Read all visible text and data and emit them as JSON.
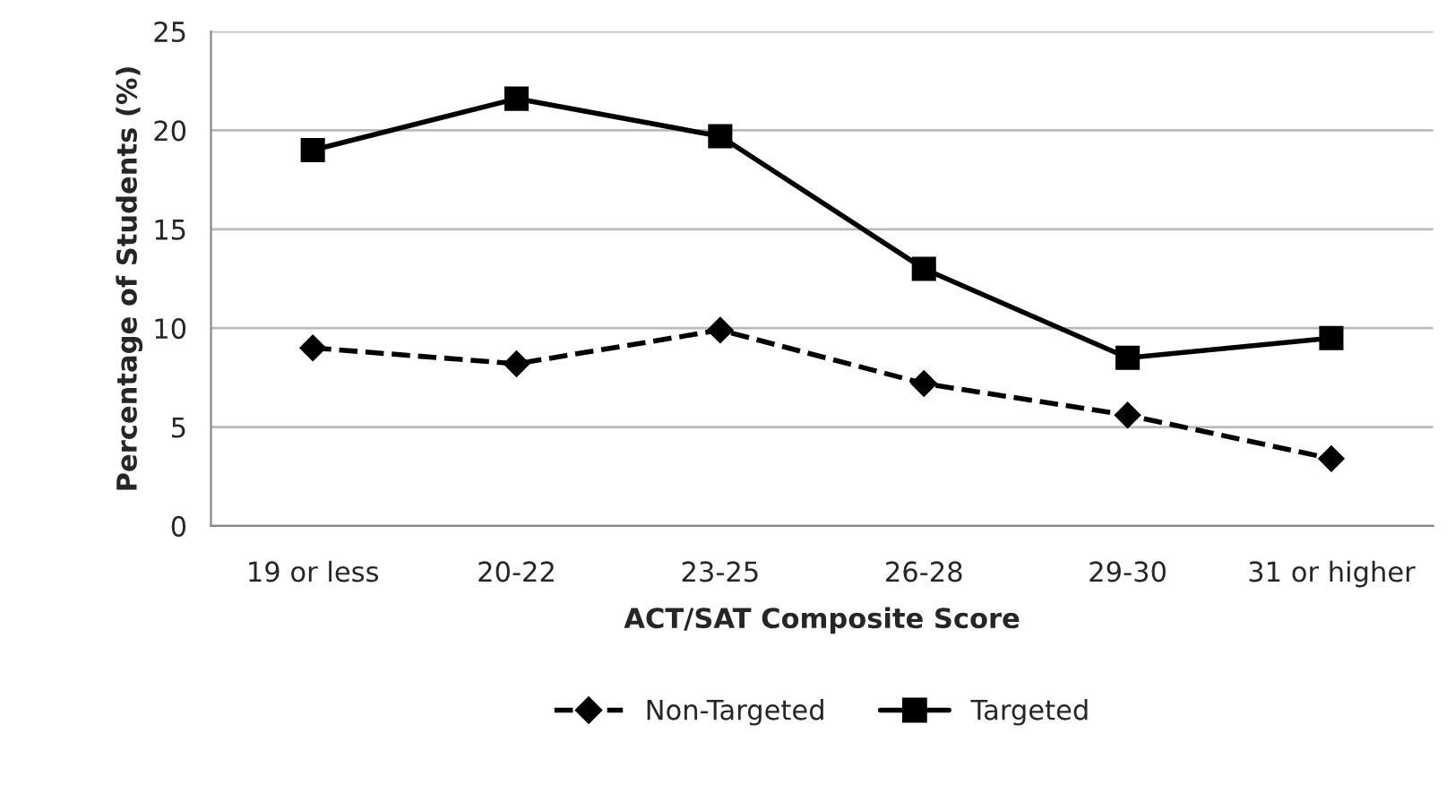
{
  "chart_data": {
    "type": "line",
    "xlabel": "ACT/SAT Composite Score",
    "ylabel": "Percentage of Students (%)",
    "categories": [
      "19 or less",
      "20-22",
      "23-25",
      "26-28",
      "29-30",
      "31 or higher"
    ],
    "series": [
      {
        "name": "Non-Targeted",
        "color": "#000000",
        "marker": "diamond",
        "line_style": "dashed",
        "values": [
          9.0,
          8.2,
          9.9,
          7.2,
          5.6,
          3.4
        ]
      },
      {
        "name": "Targeted",
        "color": "#000000",
        "marker": "square",
        "line_style": "solid",
        "values": [
          19.0,
          21.6,
          19.7,
          13.0,
          8.5,
          9.5
        ]
      }
    ],
    "ylim": [
      0,
      25
    ],
    "yticks": [
      0,
      5,
      10,
      15,
      20,
      25
    ],
    "grid": "y",
    "legend": "bottom"
  }
}
